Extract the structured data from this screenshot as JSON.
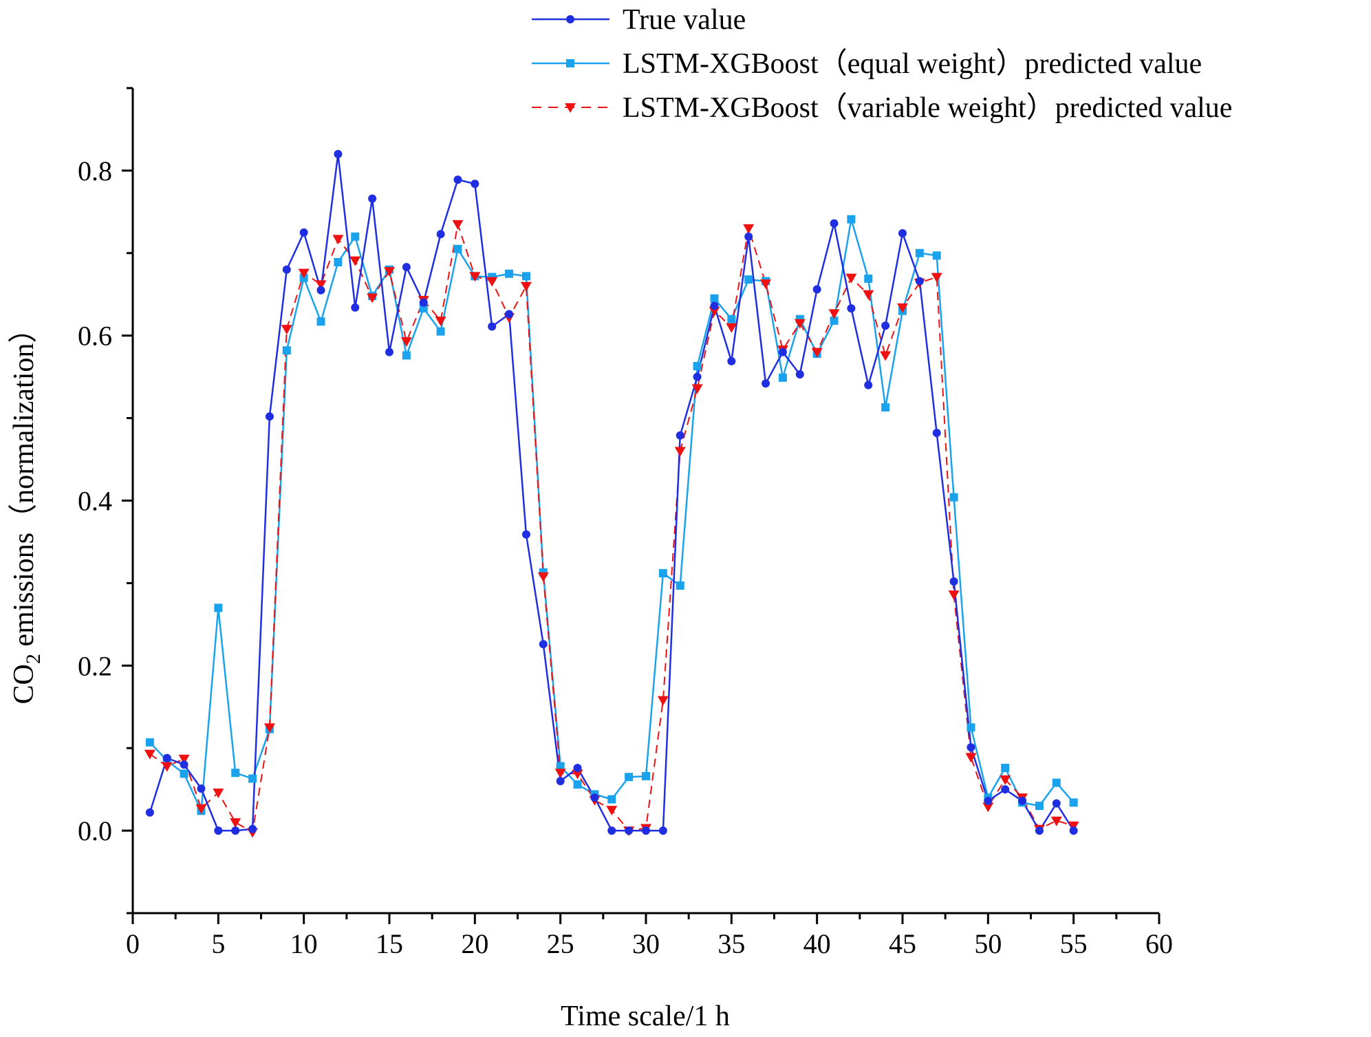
{
  "chart_data": {
    "type": "line",
    "title": "",
    "xlabel": "Time scale/1 h",
    "ylabel_main": "CO",
    "ylabel_sub": "2",
    "ylabel_rest": " emissions（normalization）",
    "xlim": [
      0,
      60
    ],
    "ylim": [
      -0.1,
      0.9
    ],
    "xticks": [
      0,
      5,
      10,
      15,
      20,
      25,
      30,
      35,
      40,
      45,
      50,
      55,
      60
    ],
    "xtick_labels": [
      "0",
      "5",
      "10",
      "15",
      "20",
      "25",
      "30",
      "35",
      "40",
      "45",
      "50",
      "55",
      "60"
    ],
    "yticks": [
      0.0,
      0.2,
      0.4,
      0.6,
      0.8
    ],
    "ytick_labels": [
      "0.0",
      "0.2",
      "0.4",
      "0.6",
      "0.8"
    ],
    "grid": false,
    "legend_position": "top",
    "x": [
      1,
      2,
      3,
      4,
      5,
      6,
      7,
      8,
      9,
      10,
      11,
      12,
      13,
      14,
      15,
      16,
      17,
      18,
      19,
      20,
      21,
      22,
      23,
      24,
      25,
      26,
      27,
      28,
      29,
      30,
      31,
      32,
      33,
      34,
      35,
      36,
      37,
      38,
      39,
      40,
      41,
      42,
      43,
      44,
      45,
      46,
      47,
      48,
      49,
      50,
      51,
      52,
      53,
      54,
      55
    ],
    "series": [
      {
        "name": "True value",
        "color": "#1f2ee0",
        "marker": "circle",
        "dash": "solid",
        "values": [
          0.022,
          0.088,
          0.08,
          0.051,
          0.0,
          0.0,
          0.002,
          0.502,
          0.68,
          0.725,
          0.655,
          0.82,
          0.634,
          0.766,
          0.58,
          0.683,
          0.64,
          0.723,
          0.789,
          0.784,
          0.611,
          0.626,
          0.359,
          0.226,
          0.06,
          0.076,
          0.04,
          0.0,
          0.0,
          0.0,
          0.0,
          0.479,
          0.55,
          0.636,
          0.569,
          0.72,
          0.542,
          0.58,
          0.553,
          0.656,
          0.736,
          0.633,
          0.54,
          0.612,
          0.724,
          0.666,
          0.482,
          0.302,
          0.101,
          0.036,
          0.05,
          0.036,
          0.0,
          0.033,
          0.0
        ]
      },
      {
        "name": "LSTM-XGBoost（equal weight）predicted value",
        "color": "#1aa3ec",
        "marker": "square",
        "dash": "solid",
        "values": [
          0.107,
          0.085,
          0.069,
          0.024,
          0.27,
          0.07,
          0.063,
          0.123,
          0.582,
          0.67,
          0.617,
          0.689,
          0.72,
          0.648,
          0.68,
          0.576,
          0.633,
          0.605,
          0.705,
          0.672,
          0.671,
          0.675,
          0.672,
          0.313,
          0.078,
          0.056,
          0.044,
          0.038,
          0.065,
          0.066,
          0.312,
          0.297,
          0.563,
          0.645,
          0.62,
          0.668,
          0.666,
          0.549,
          0.62,
          0.578,
          0.618,
          0.741,
          0.669,
          0.513,
          0.63,
          0.7,
          0.697,
          0.404,
          0.125,
          0.04,
          0.076,
          0.034,
          0.03,
          0.058,
          0.034
        ]
      },
      {
        "name": "LSTM-XGBoost（variable weight）predicted value",
        "color": "#ee1111",
        "marker": "triangle-down",
        "dash": "dashed",
        "values": [
          0.093,
          0.078,
          0.087,
          0.027,
          0.046,
          0.01,
          -0.002,
          0.125,
          0.608,
          0.676,
          0.662,
          0.717,
          0.691,
          0.646,
          0.678,
          0.593,
          0.643,
          0.618,
          0.735,
          0.672,
          0.666,
          0.622,
          0.66,
          0.308,
          0.07,
          0.069,
          0.037,
          0.025,
          0.0,
          0.003,
          0.158,
          0.46,
          0.536,
          0.63,
          0.61,
          0.73,
          0.663,
          0.583,
          0.615,
          0.58,
          0.627,
          0.67,
          0.65,
          0.576,
          0.634,
          0.664,
          0.671,
          0.286,
          0.089,
          0.029,
          0.062,
          0.04,
          0.002,
          0.012,
          0.006
        ]
      }
    ]
  }
}
